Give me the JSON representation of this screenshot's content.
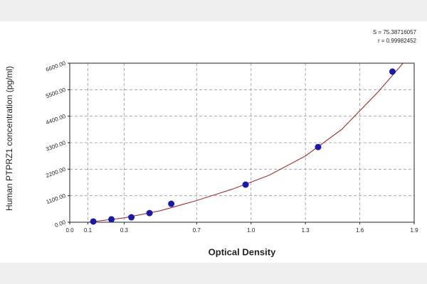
{
  "chart_data": {
    "type": "scatter",
    "x_label": "Optical Density",
    "y_label": "Human PTPRZ1 concentration (pg/ml)",
    "annotations": [
      "S = 75.38716057",
      "r = 0.99982452"
    ],
    "series": [
      {
        "color": "#1a1aa8",
        "x": [
          0.13,
          0.23,
          0.34,
          0.44,
          0.56,
          0.97,
          1.37,
          1.78
        ],
        "values": [
          30,
          120,
          205,
          380,
          765,
          1560,
          3120,
          6250
        ]
      },
      {
        "color": "#9b1c1c",
        "x": [
          0.1,
          0.3,
          0.5,
          0.7,
          0.9,
          1.1,
          1.3,
          1.5,
          1.7,
          1.85
        ],
        "values": [
          0,
          180,
          480,
          900,
          1380,
          1950,
          2750,
          3850,
          5400,
          6700
        ]
      }
    ],
    "xlim": [
      0,
      1.9
    ],
    "xticks": [
      {
        "value": 0,
        "label": "0.0"
      },
      {
        "value": 0.1,
        "label": "0.1"
      },
      {
        "value": 0.3,
        "label": "0.3"
      },
      {
        "value": 0.7,
        "label": "0.7"
      },
      {
        "value": 1.0,
        "label": "1.0"
      },
      {
        "value": 1.3,
        "label": "1.3"
      },
      {
        "value": 1.6,
        "label": "1.6"
      },
      {
        "value": 1.9,
        "label": "1.9"
      }
    ],
    "ylim": [
      0,
      6600
    ],
    "yticks": [
      {
        "value": 0,
        "label": "0.00"
      },
      {
        "value": 1100,
        "label": "1100.00"
      },
      {
        "value": 2200,
        "label": "2200.00"
      },
      {
        "value": 3300,
        "label": "3300.00"
      },
      {
        "value": 4400,
        "label": "4400.00"
      },
      {
        "value": 5500,
        "label": "5500.00"
      },
      {
        "value": 6600,
        "label": "6600.00"
      }
    ],
    "grid": true
  }
}
